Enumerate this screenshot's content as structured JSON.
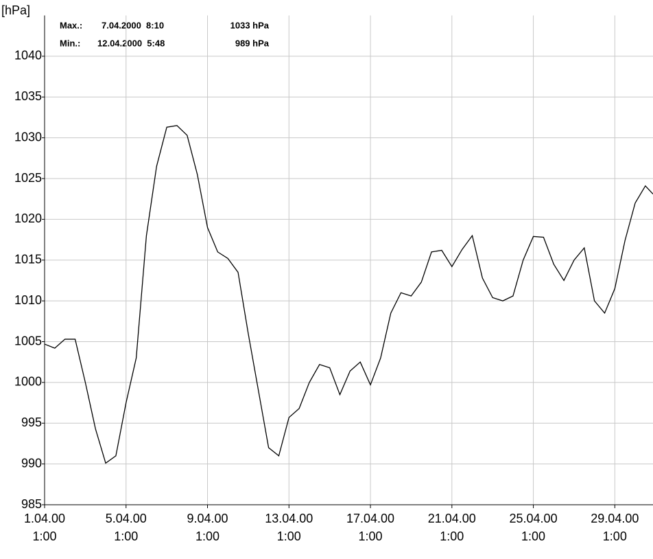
{
  "chart_data": {
    "type": "line",
    "y_label": "[hPa]",
    "annotations": [
      {
        "label": "Max.:",
        "date": "7.04.2000  8:10",
        "value": "1033 hPa"
      },
      {
        "label": "Min.:",
        "date": "12.04.2000  5:48",
        "value": "989 hPa"
      }
    ],
    "x": [
      "2000-04-01T01:00",
      "2000-04-01T13:00",
      "2000-04-02T01:00",
      "2000-04-02T13:00",
      "2000-04-03T01:00",
      "2000-04-03T13:00",
      "2000-04-04T01:00",
      "2000-04-04T13:00",
      "2000-04-05T01:00",
      "2000-04-05T13:00",
      "2000-04-06T01:00",
      "2000-04-06T13:00",
      "2000-04-07T01:00",
      "2000-04-07T13:00",
      "2000-04-08T01:00",
      "2000-04-08T13:00",
      "2000-04-09T01:00",
      "2000-04-09T13:00",
      "2000-04-10T01:00",
      "2000-04-10T13:00",
      "2000-04-11T01:00",
      "2000-04-11T13:00",
      "2000-04-12T01:00",
      "2000-04-12T13:00",
      "2000-04-13T01:00",
      "2000-04-13T13:00",
      "2000-04-14T01:00",
      "2000-04-14T13:00",
      "2000-04-15T01:00",
      "2000-04-15T13:00",
      "2000-04-16T01:00",
      "2000-04-16T13:00",
      "2000-04-17T01:00",
      "2000-04-17T13:00",
      "2000-04-18T01:00",
      "2000-04-18T13:00",
      "2000-04-19T01:00",
      "2000-04-19T13:00",
      "2000-04-20T01:00",
      "2000-04-20T13:00",
      "2000-04-21T01:00",
      "2000-04-21T13:00",
      "2000-04-22T01:00",
      "2000-04-22T13:00",
      "2000-04-23T01:00",
      "2000-04-23T13:00",
      "2000-04-24T01:00",
      "2000-04-24T13:00",
      "2000-04-25T01:00",
      "2000-04-25T13:00",
      "2000-04-26T01:00",
      "2000-04-26T13:00",
      "2000-04-27T01:00",
      "2000-04-27T13:00",
      "2000-04-28T01:00",
      "2000-04-28T13:00",
      "2000-04-29T01:00",
      "2000-04-29T13:00",
      "2000-04-30T01:00",
      "2000-04-30T13:00",
      "2000-04-30T22:00"
    ],
    "series": [
      {
        "color": "#000000",
        "values": [
          1004.7,
          1004.2,
          1005.3,
          1005.3,
          1000,
          994.3,
          990.1,
          991,
          997.5,
          1003,
          1018,
          1026.5,
          1031.3,
          1031.5,
          1030.3,
          1025.5,
          1019,
          1016,
          1015.2,
          1013.5,
          1006,
          999,
          992,
          991,
          995.7,
          996.8,
          1000,
          1002.2,
          1001.8,
          998.5,
          1001.4,
          1002.5,
          999.7,
          1003,
          1008.5,
          1011,
          1010.6,
          1012.3,
          1016,
          1016.2,
          1014.2,
          1016.3,
          1018,
          1012.8,
          1010.4,
          1010,
          1010.6,
          1015,
          1017.9,
          1017.8,
          1014.5,
          1012.5,
          1015,
          1016.5,
          1010,
          1008.5,
          1011.5,
          1017.4,
          1022,
          1024.1,
          1023.1
        ]
      }
    ],
    "xlim": [
      "2000-04-01T01:00",
      "2000-04-30T22:00"
    ],
    "xticks": [
      {
        "value": "2000-04-01T01:00",
        "label": "1.04.00\n1:00"
      },
      {
        "value": "2000-04-05T01:00",
        "label": "5.04.00\n1:00"
      },
      {
        "value": "2000-04-09T01:00",
        "label": "9.04.00\n1:00"
      },
      {
        "value": "2000-04-13T01:00",
        "label": "13.04.00\n1:00"
      },
      {
        "value": "2000-04-17T01:00",
        "label": "17.04.00\n1:00"
      },
      {
        "value": "2000-04-21T01:00",
        "label": "21.04.00\n1:00"
      },
      {
        "value": "2000-04-25T01:00",
        "label": "25.04.00\n1:00"
      },
      {
        "value": "2000-04-29T01:00",
        "label": "29.04.00\n1:00"
      }
    ],
    "ylim": [
      985,
      1045
    ],
    "yticks": [
      985,
      990,
      995,
      1000,
      1005,
      1010,
      1015,
      1020,
      1025,
      1030,
      1035,
      1040
    ],
    "grid": true
  }
}
